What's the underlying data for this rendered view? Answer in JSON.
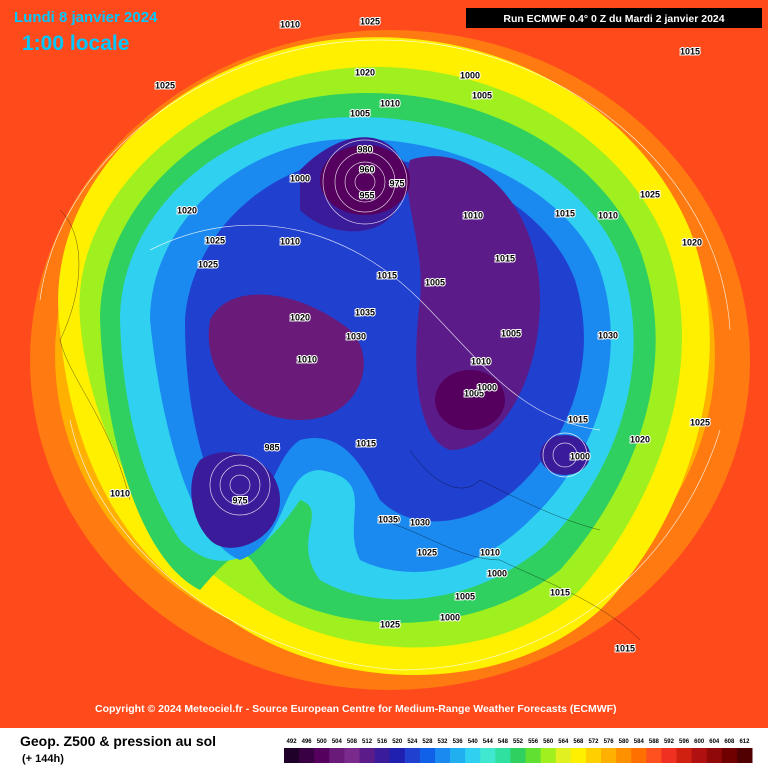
{
  "header": {
    "title": "Lundi 8 janvier 2024",
    "time": "1:00 locale",
    "run": "Run ECMWF 0.4° 0 Z du Mardi 2 janvier 2024"
  },
  "copyright": "Copyright © 2024 Meteociel.fr - Source European Centre for Medium-Range Weather Forecasts (ECMWF)",
  "footer": {
    "title": "Geop. Z500 & pression au sol",
    "subtitle": "(+ 144h)"
  },
  "legend": {
    "values": [
      492,
      496,
      500,
      504,
      508,
      512,
      516,
      520,
      524,
      528,
      532,
      536,
      540,
      544,
      548,
      552,
      556,
      560,
      564,
      568,
      572,
      576,
      580,
      584,
      588,
      592,
      596,
      600,
      604,
      608,
      612
    ],
    "colors": [
      "#1e0029",
      "#3a0044",
      "#55005e",
      "#6a1a78",
      "#7a2a8c",
      "#5b1c8a",
      "#3a1c9a",
      "#2020b0",
      "#2040d0",
      "#1060e8",
      "#1a8af0",
      "#20b0f0",
      "#30d0f0",
      "#40e8d0",
      "#30e0a0",
      "#30d060",
      "#60e030",
      "#a0f020",
      "#e0f020",
      "#fff000",
      "#ffd000",
      "#ffb000",
      "#ff9000",
      "#ff7000",
      "#ff5020",
      "#f03020",
      "#d02010",
      "#b01010",
      "#900808",
      "#700000",
      "#500000"
    ]
  },
  "isobar_labels": [
    "1010",
    "1025",
    "1015",
    "1025",
    "1020",
    "1000",
    "1005",
    "1010",
    "1005",
    "980",
    "960",
    "975",
    "955",
    "1000",
    "1020",
    "1025",
    "1010",
    "1025",
    "1015",
    "1035",
    "1030",
    "1020",
    "1010",
    "1005",
    "1010",
    "1015",
    "1015",
    "1005",
    "1010",
    "1005",
    "1000",
    "1015",
    "1000",
    "1030",
    "1020",
    "1025",
    "1015",
    "985",
    "975",
    "1010",
    "1035",
    "1030",
    "1025",
    "1010",
    "1000",
    "1005",
    "1000",
    "1025",
    "1015",
    "1015",
    "1010",
    "1025",
    "1020",
    "1030"
  ]
}
